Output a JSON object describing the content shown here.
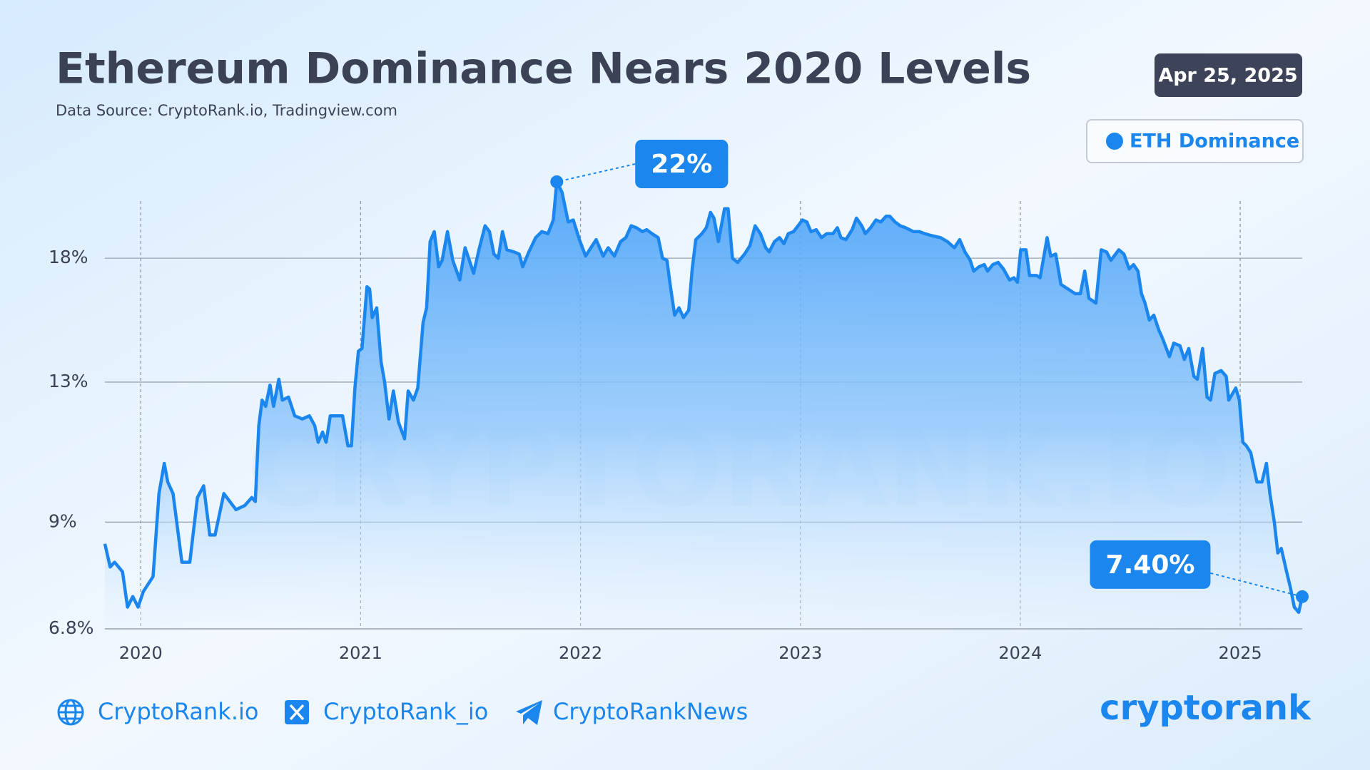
{
  "chart_data": {
    "type": "area-line",
    "title": "Ethereum Dominance Nears 2020 Levels",
    "subtitle": "Data Source: CryptoRank.io, Tradingview.com",
    "date": "Apr 25, 2025",
    "watermark": "CRYPTORANK.IO",
    "log_scale": true,
    "grid": true,
    "legend": "top-right",
    "xlim": [
      2019.837,
      2025.282
    ],
    "xticks": [
      2020,
      2021,
      2022,
      2023,
      2024,
      2025
    ],
    "ylim": [
      6.8,
      22
    ],
    "yticks": [
      {
        "value": 6.8,
        "label": "6.8%"
      },
      {
        "value": 9,
        "label": "9%"
      },
      {
        "value": 13,
        "label": "13%"
      },
      {
        "value": 18,
        "label": "18%"
      }
    ],
    "x": [
      2019.837,
      2019.861,
      2019.881,
      2019.917,
      2019.94,
      2019.964,
      2019.988,
      2020.012,
      2020.056,
      2020.083,
      2020.107,
      2020.123,
      2020.147,
      2020.187,
      2020.223,
      2020.258,
      2020.286,
      2020.314,
      2020.338,
      2020.378,
      2020.433,
      2020.473,
      2020.505,
      2020.521,
      2020.537,
      2020.552,
      2020.568,
      2020.588,
      2020.604,
      2020.628,
      2020.644,
      2020.672,
      2020.7,
      2020.735,
      2020.767,
      2020.791,
      2020.807,
      2020.827,
      2020.843,
      2020.862,
      2020.89,
      2020.918,
      2020.942,
      2020.958,
      2020.974,
      2020.99,
      2021.006,
      2021.029,
      2021.041,
      2021.053,
      2021.073,
      2021.093,
      2021.109,
      2021.129,
      2021.149,
      2021.172,
      2021.2,
      2021.216,
      2021.24,
      2021.26,
      2021.284,
      2021.3,
      2021.316,
      2021.335,
      2021.355,
      2021.371,
      2021.395,
      2021.419,
      2021.451,
      2021.475,
      2021.514,
      2021.538,
      2021.566,
      2021.586,
      2021.606,
      2021.626,
      2021.645,
      2021.665,
      2021.697,
      2021.721,
      2021.737,
      2021.765,
      2021.796,
      2021.824,
      2021.852,
      2021.876,
      2021.892,
      2021.916,
      2021.944,
      2021.967,
      2021.995,
      2022.023,
      2022.047,
      2022.071,
      2022.103,
      2022.126,
      2022.154,
      2022.182,
      2022.206,
      2022.23,
      2022.254,
      2022.281,
      2022.301,
      2022.325,
      2022.353,
      2022.373,
      2022.393,
      2022.409,
      2022.428,
      2022.448,
      2022.468,
      2022.492,
      2022.508,
      2022.524,
      2022.552,
      2022.572,
      2022.591,
      2022.607,
      2022.627,
      2022.655,
      2022.671,
      2022.691,
      2022.715,
      2022.746,
      2022.77,
      2022.794,
      2022.818,
      2022.842,
      2022.858,
      2022.882,
      2022.905,
      2022.925,
      2022.945,
      2022.969,
      2022.989,
      2023.009,
      2023.029,
      2023.048,
      2023.072,
      2023.096,
      2023.12,
      2023.148,
      2023.168,
      2023.184,
      2023.207,
      2023.235,
      2023.255,
      2023.279,
      2023.295,
      2023.319,
      2023.343,
      2023.366,
      2023.39,
      2023.406,
      2023.43,
      2023.454,
      2023.478,
      2023.514,
      2023.541,
      2023.565,
      2023.597,
      2023.637,
      2023.669,
      2023.7,
      2023.724,
      2023.748,
      2023.772,
      2023.788,
      2023.812,
      2023.836,
      2023.851,
      2023.875,
      2023.899,
      2023.923,
      2023.951,
      2023.971,
      2023.987,
      2024.002,
      2024.026,
      2024.042,
      2024.074,
      2024.09,
      2024.122,
      2024.138,
      2024.161,
      2024.185,
      2024.217,
      2024.249,
      2024.273,
      2024.293,
      2024.312,
      2024.344,
      2024.368,
      2024.392,
      2024.412,
      2024.448,
      2024.471,
      2024.495,
      2024.515,
      2024.535,
      2024.551,
      2024.567,
      2024.587,
      2024.607,
      2024.63,
      2024.646,
      2024.678,
      2024.698,
      2024.726,
      2024.746,
      2024.766,
      2024.789,
      2024.805,
      2024.829,
      2024.849,
      2024.865,
      2024.885,
      2024.913,
      2024.936,
      2024.948,
      2024.98,
      2024.996,
      2025.012,
      2025.028,
      2025.048,
      2025.076,
      2025.099,
      2025.119,
      2025.135,
      2025.155,
      2025.171,
      2025.187,
      2025.211,
      2025.227,
      2025.246,
      2025.266,
      2025.282
    ],
    "series": [
      {
        "name": "ETH Dominance",
        "color": "#1a86ee",
        "values": [
          8.5,
          8.0,
          8.1,
          7.9,
          7.2,
          7.4,
          7.2,
          7.5,
          7.8,
          9.7,
          10.5,
          10.0,
          9.7,
          8.1,
          8.1,
          9.6,
          9.9,
          8.7,
          8.7,
          9.7,
          9.3,
          9.4,
          9.6,
          9.5,
          11.6,
          12.4,
          12.2,
          12.9,
          12.2,
          13.1,
          12.4,
          12.5,
          11.9,
          11.8,
          11.9,
          11.6,
          11.1,
          11.4,
          11.1,
          11.9,
          11.9,
          11.9,
          11.0,
          11.0,
          12.8,
          14.1,
          14.2,
          16.7,
          16.6,
          15.4,
          15.8,
          13.7,
          13.0,
          11.8,
          12.7,
          11.7,
          11.2,
          12.7,
          12.4,
          12.8,
          15.2,
          15.8,
          18.8,
          19.3,
          17.6,
          17.9,
          19.3,
          17.9,
          17.0,
          18.5,
          17.3,
          18.4,
          19.6,
          19.3,
          18.2,
          18.0,
          19.3,
          18.4,
          18.3,
          18.2,
          17.6,
          18.3,
          19.0,
          19.3,
          19.2,
          19.9,
          22,
          21.4,
          19.8,
          19.9,
          18.9,
          18.1,
          18.5,
          18.9,
          18.1,
          18.5,
          18.1,
          18.8,
          19.0,
          19.6,
          19.5,
          19.3,
          19.4,
          19.2,
          19.0,
          18.0,
          17.9,
          16.7,
          15.5,
          15.8,
          15.4,
          15.7,
          17.5,
          18.9,
          19.2,
          19.5,
          20.3,
          20.0,
          18.8,
          20.5,
          20.5,
          18.0,
          17.8,
          18.2,
          18.6,
          19.6,
          19.2,
          18.5,
          18.3,
          18.8,
          19.0,
          18.7,
          19.2,
          19.3,
          19.6,
          19.9,
          19.8,
          19.3,
          19.4,
          19.0,
          19.2,
          19.2,
          19.5,
          19.0,
          18.9,
          19.4,
          20.0,
          19.6,
          19.2,
          19.5,
          19.9,
          19.8,
          20.1,
          20.1,
          19.8,
          19.6,
          19.5,
          19.3,
          19.3,
          19.2,
          19.1,
          19.0,
          18.8,
          18.5,
          18.9,
          18.3,
          17.9,
          17.4,
          17.6,
          17.7,
          17.4,
          17.7,
          17.8,
          17.5,
          17.0,
          17.1,
          16.9,
          18.4,
          18.4,
          17.2,
          17.2,
          17.1,
          19.0,
          18.1,
          18.2,
          16.8,
          16.6,
          16.4,
          16.4,
          17.4,
          16.2,
          16.0,
          18.4,
          18.3,
          17.9,
          18.4,
          18.2,
          17.5,
          17.7,
          17.4,
          16.4,
          16.0,
          15.3,
          15.5,
          14.9,
          14.6,
          13.9,
          14.4,
          14.3,
          13.8,
          14.2,
          13.2,
          13.1,
          14.2,
          12.5,
          12.4,
          13.3,
          13.4,
          13.2,
          12.4,
          12.8,
          12.4,
          11.1,
          11.0,
          10.8,
          10.0,
          10.0,
          10.5,
          9.7,
          9.0,
          8.3,
          8.4,
          7.9,
          7.6,
          7.2,
          7.1,
          7.4
        ]
      }
    ],
    "annotations": [
      {
        "x": 2021.892,
        "label": "22%"
      },
      {
        "x": 2025.282,
        "label": "7.40%"
      }
    ]
  },
  "footer": {
    "website": "CryptoRank.io",
    "x_handle": "CryptoRank_io",
    "telegram": "CryptoRankNews",
    "logo": "cryptorank"
  }
}
